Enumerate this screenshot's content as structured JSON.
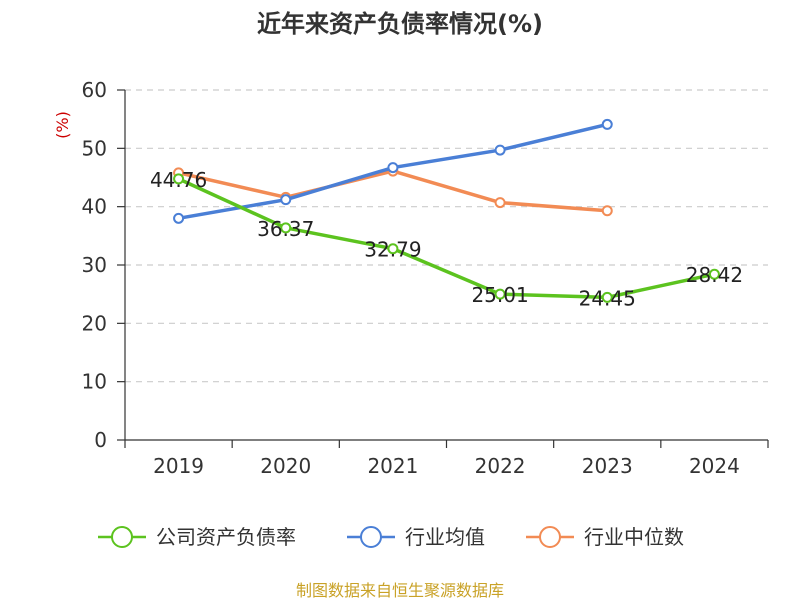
{
  "chart_data": {
    "type": "line",
    "title": "近年来资产负债率情况(%)",
    "ylabel": "(%)",
    "xlabel": "",
    "categories": [
      "2019",
      "2020",
      "2021",
      "2022",
      "2023",
      "2024"
    ],
    "ylim": [
      0,
      60
    ],
    "yticks": [
      0,
      10,
      20,
      30,
      40,
      50,
      60
    ],
    "grid": true,
    "legend_position": "bottom",
    "series": [
      {
        "name": "公司资产负债率",
        "color": "#5cc31f",
        "values": [
          44.76,
          36.37,
          32.79,
          25.01,
          24.45,
          28.42
        ],
        "labels": [
          "44.76",
          "36.37",
          "32.79",
          "25.01",
          "24.45",
          "28.42"
        ]
      },
      {
        "name": "行业均值",
        "color": "#4a7fd6",
        "values": [
          38.0,
          41.2,
          46.7,
          49.7,
          54.1,
          null
        ]
      },
      {
        "name": "行业中位数",
        "color": "#f28b54",
        "values": [
          45.8,
          41.6,
          46.1,
          40.7,
          39.3,
          null
        ]
      }
    ]
  },
  "source": "制图数据来自恒生聚源数据库",
  "colors": {
    "ylabel": "#cc0000",
    "source": "#c9a227",
    "grid": "#cccccc",
    "axis": "#333333"
  }
}
